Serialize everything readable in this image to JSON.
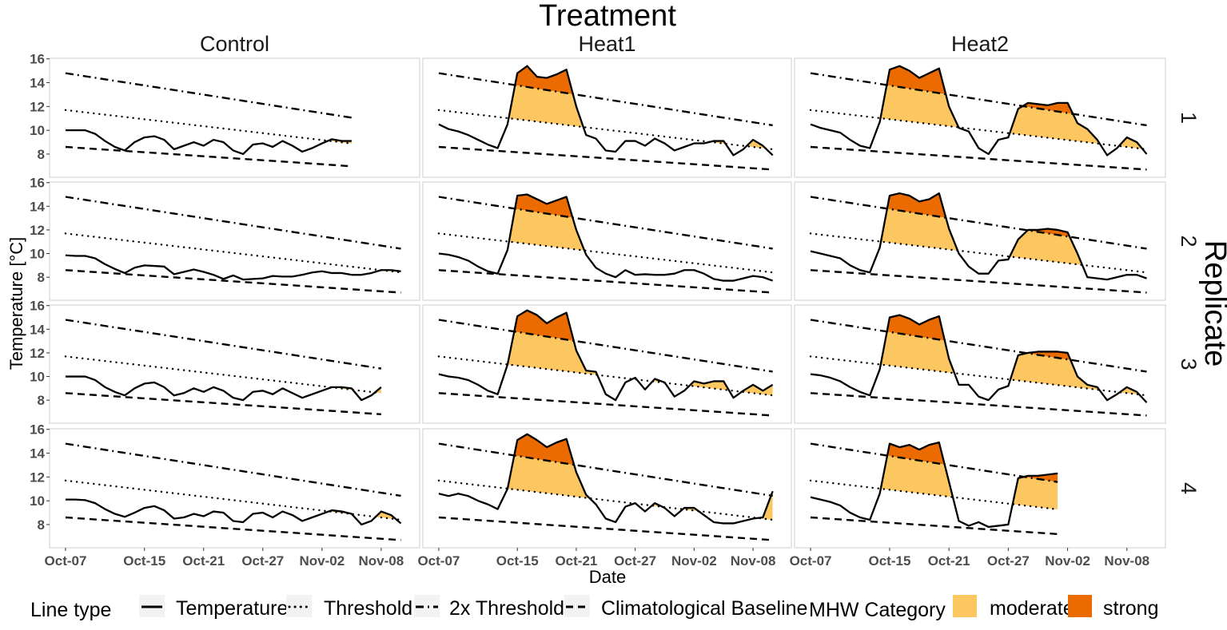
{
  "chart_data": {
    "type": "line",
    "title": "Treatment",
    "xlabel": "Date",
    "ylabel": "Temperature [°C]",
    "row_facet_label": "Replicate",
    "columns": [
      "Control",
      "Heat1",
      "Heat2"
    ],
    "rows": [
      "1",
      "2",
      "3",
      "4"
    ],
    "x_unit": "days since Oct-07",
    "x_ticks": [
      {
        "day": 0,
        "label": "Oct-07"
      },
      {
        "day": 8,
        "label": "Oct-15"
      },
      {
        "day": 14,
        "label": "Oct-21"
      },
      {
        "day": 20,
        "label": "Oct-27"
      },
      {
        "day": 26,
        "label": "Nov-02"
      },
      {
        "day": 32,
        "label": "Nov-08"
      }
    ],
    "y_ticks": [
      8,
      10,
      12,
      14,
      16
    ],
    "xlim": [
      -1.62,
      35.9
    ],
    "ylim": [
      6.05,
      16.05
    ],
    "reference_lines": {
      "climatology": {
        "start": 8.6,
        "slope_per_day": -0.056
      },
      "threshold": {
        "start": 11.7,
        "slope_per_day": -0.097
      },
      "threshold_2x": {
        "start": 14.8,
        "slope_per_day": -0.129
      }
    },
    "panels": [
      {
        "col": 0,
        "row": 0,
        "temperature": [
          10.0,
          10.0,
          10.0,
          9.7,
          9.1,
          8.6,
          8.3,
          9.0,
          9.4,
          9.5,
          9.2,
          8.4,
          8.7,
          9.0,
          8.7,
          9.2,
          9.0,
          8.3,
          8.0,
          8.8,
          8.9,
          8.6,
          9.1,
          8.7,
          8.2,
          8.5,
          8.9,
          9.25,
          9.1,
          9.1
        ]
      },
      {
        "col": 1,
        "row": 0,
        "temperature": [
          10.5,
          10.1,
          9.9,
          9.6,
          9.2,
          8.8,
          8.5,
          10.5,
          14.8,
          15.4,
          14.5,
          14.4,
          14.7,
          15.1,
          12.0,
          9.6,
          9.3,
          8.3,
          8.2,
          9.1,
          9.1,
          8.7,
          9.3,
          8.9,
          8.3,
          8.6,
          8.9,
          8.9,
          9.1,
          9.1,
          7.9,
          8.4,
          9.2,
          8.7,
          7.9
        ]
      },
      {
        "col": 2,
        "row": 0,
        "temperature": [
          10.5,
          10.2,
          10.0,
          9.8,
          9.2,
          8.7,
          8.5,
          10.7,
          15.1,
          15.4,
          15.0,
          14.4,
          14.8,
          15.2,
          12.0,
          10.2,
          9.9,
          8.5,
          8.0,
          9.2,
          9.4,
          11.8,
          12.3,
          12.2,
          12.1,
          12.3,
          12.3,
          10.6,
          10.1,
          9.2,
          7.9,
          8.5,
          9.4,
          9.0,
          8.0
        ]
      },
      {
        "col": 0,
        "row": 1,
        "temperature": [
          9.85,
          9.8,
          9.8,
          9.6,
          9.1,
          8.7,
          8.35,
          8.8,
          9.0,
          8.95,
          8.9,
          8.25,
          8.45,
          8.65,
          8.45,
          8.2,
          7.85,
          8.15,
          7.8,
          7.85,
          7.9,
          8.1,
          8.05,
          8.05,
          8.2,
          8.4,
          8.5,
          8.35,
          8.35,
          8.2,
          8.2,
          8.35,
          8.6,
          8.6,
          8.5
        ]
      },
      {
        "col": 1,
        "row": 1,
        "temperature": [
          10.0,
          9.9,
          9.7,
          9.4,
          8.9,
          8.5,
          8.3,
          10.3,
          14.9,
          15.0,
          14.6,
          14.2,
          14.5,
          14.8,
          12.0,
          9.9,
          8.8,
          8.3,
          8.0,
          8.6,
          8.2,
          8.25,
          8.2,
          8.2,
          8.3,
          8.6,
          8.6,
          8.3,
          7.85,
          7.7,
          7.7,
          7.9,
          8.1,
          8.0,
          7.7
        ]
      },
      {
        "col": 2,
        "row": 1,
        "temperature": [
          10.2,
          10.0,
          9.8,
          9.6,
          9.0,
          8.6,
          8.4,
          10.5,
          14.9,
          15.1,
          14.9,
          14.4,
          14.6,
          15.1,
          12.1,
          10.0,
          8.9,
          8.3,
          8.3,
          9.4,
          9.5,
          11.2,
          12.0,
          12.0,
          12.1,
          12.0,
          11.8,
          10.0,
          8.0,
          7.9,
          7.8,
          8.0,
          8.2,
          8.2,
          7.9
        ]
      },
      {
        "col": 0,
        "row": 2,
        "temperature": [
          10.0,
          10.0,
          10.0,
          9.7,
          9.1,
          8.7,
          8.4,
          9.0,
          9.4,
          9.5,
          9.1,
          8.4,
          8.6,
          9.0,
          8.7,
          9.1,
          8.8,
          8.2,
          8.0,
          8.7,
          8.8,
          8.5,
          9.0,
          8.6,
          8.2,
          8.5,
          8.8,
          9.1,
          9.1,
          9.0,
          8.0,
          8.4,
          9.1
        ]
      },
      {
        "col": 1,
        "row": 2,
        "temperature": [
          10.2,
          10.0,
          9.9,
          9.7,
          9.3,
          8.8,
          8.5,
          11.0,
          15.1,
          15.6,
          15.2,
          14.5,
          15.0,
          15.4,
          12.2,
          10.5,
          10.4,
          8.5,
          8.0,
          9.5,
          9.9,
          8.9,
          9.8,
          9.5,
          8.3,
          8.8,
          9.6,
          9.4,
          9.6,
          9.6,
          8.2,
          8.8,
          9.3,
          8.8,
          9.3
        ]
      },
      {
        "col": 2,
        "row": 2,
        "temperature": [
          10.2,
          10.1,
          9.9,
          9.6,
          9.1,
          8.7,
          8.4,
          10.6,
          15.0,
          15.2,
          14.9,
          14.4,
          14.8,
          15.1,
          11.5,
          9.3,
          9.3,
          8.3,
          8.0,
          8.9,
          9.2,
          11.8,
          12.0,
          12.1,
          12.1,
          12.1,
          12.0,
          10.0,
          9.3,
          9.1,
          8.0,
          8.5,
          9.1,
          8.7,
          7.8
        ]
      },
      {
        "col": 0,
        "row": 3,
        "temperature": [
          10.1,
          10.1,
          10.05,
          9.8,
          9.3,
          8.9,
          8.65,
          9.0,
          9.4,
          9.55,
          9.2,
          8.5,
          8.6,
          8.9,
          8.7,
          9.1,
          9.0,
          8.3,
          8.2,
          8.9,
          9.0,
          8.6,
          9.1,
          8.8,
          8.3,
          8.6,
          8.9,
          9.2,
          9.1,
          8.9,
          8.0,
          8.3,
          9.1,
          8.8,
          8.1
        ]
      },
      {
        "col": 1,
        "row": 3,
        "temperature": [
          10.6,
          10.4,
          10.6,
          10.4,
          10.0,
          9.7,
          9.3,
          11.0,
          15.1,
          15.6,
          15.1,
          14.5,
          14.9,
          15.2,
          12.4,
          10.5,
          9.7,
          8.5,
          8.2,
          9.5,
          9.8,
          9.1,
          9.8,
          9.4,
          8.7,
          9.4,
          9.4,
          8.8,
          8.2,
          8.1,
          8.1,
          8.3,
          8.5,
          8.6,
          10.8
        ]
      },
      {
        "col": 2,
        "row": 3,
        "temperature": [
          10.3,
          10.1,
          9.9,
          9.6,
          9.0,
          8.6,
          8.4,
          10.6,
          14.8,
          14.5,
          14.7,
          14.3,
          14.7,
          14.9,
          11.6,
          8.3,
          7.9,
          8.2,
          7.8,
          7.9,
          8.0,
          11.9,
          12.1,
          12.1,
          12.2,
          12.3
        ]
      }
    ],
    "legend": {
      "line_type_title": "Line type",
      "line_types": [
        "Temperature",
        "Threshold",
        "2x Threshold",
        "Climatological Baseline"
      ],
      "category_title": "MHW Category",
      "categories": [
        "moderate",
        "strong"
      ],
      "placement": "bottom"
    },
    "colors": {
      "moderate": "#FCC660",
      "strong": "#EB6B00",
      "line": "#000000",
      "panel_border": "#D9D9D9",
      "tick_text": "#4D4D4D"
    }
  }
}
